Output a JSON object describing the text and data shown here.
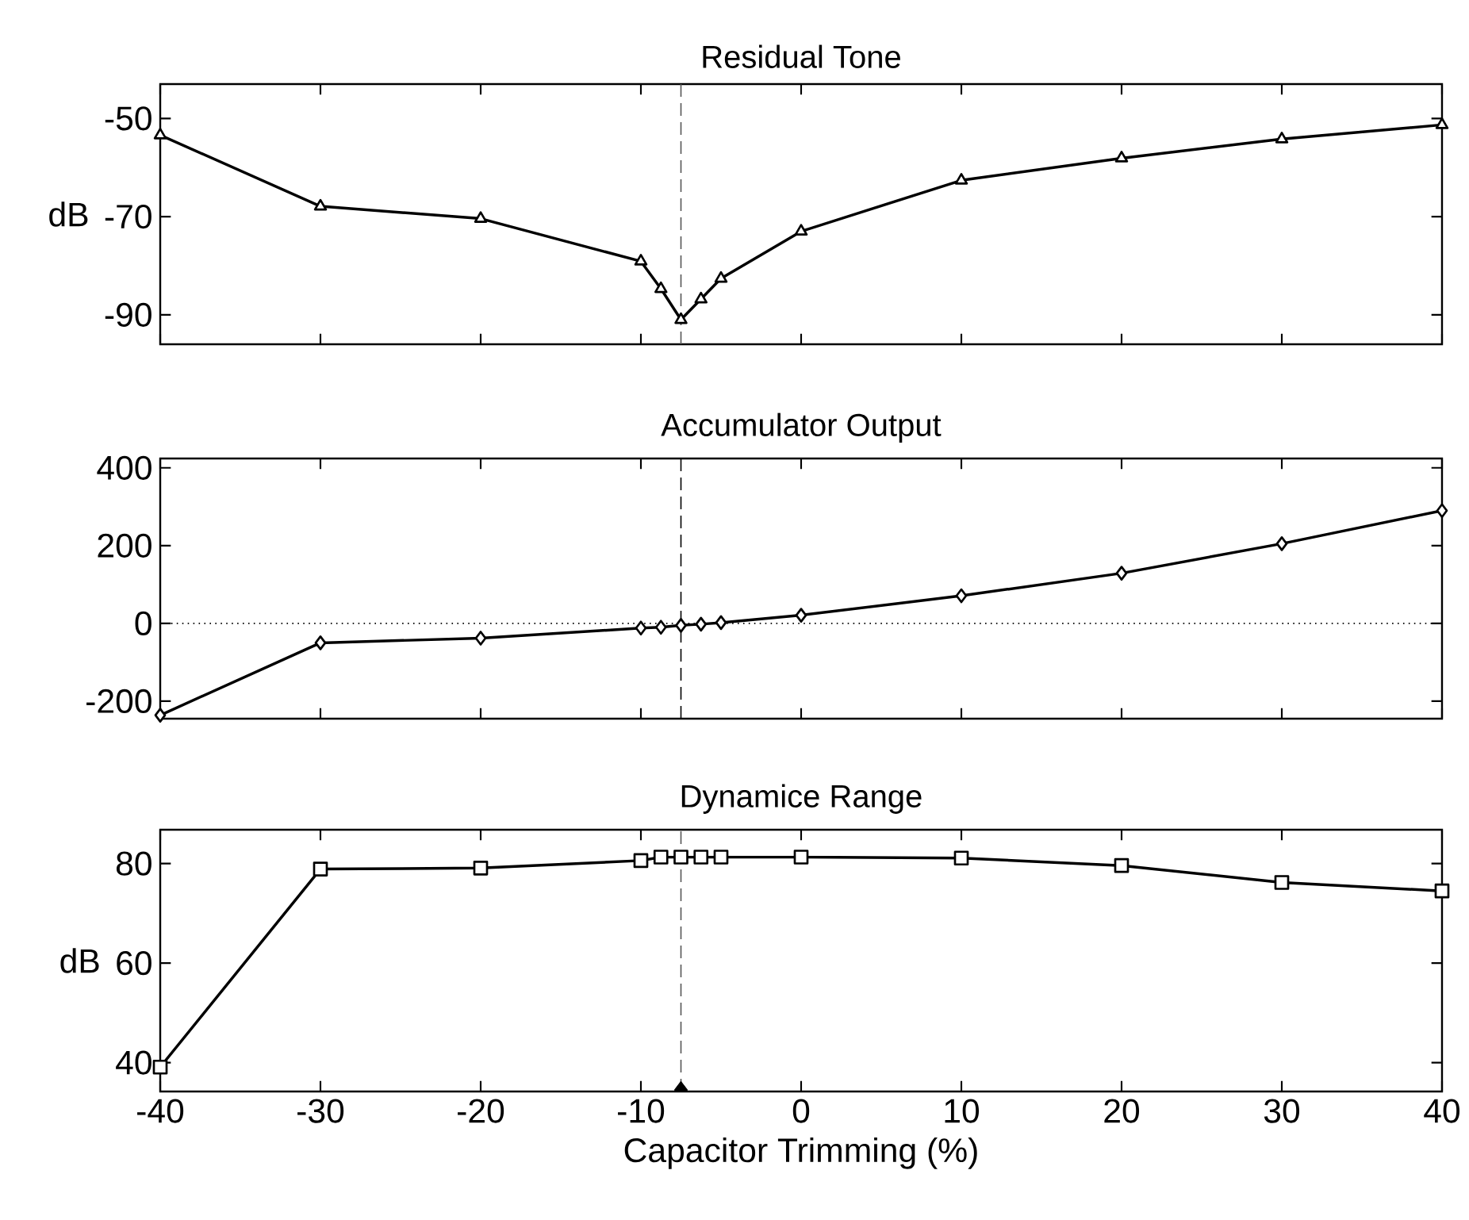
{
  "chart_data": [
    {
      "type": "line",
      "title": "Residual Tone",
      "ylabel": "dB",
      "x": [
        -40,
        -30,
        -20,
        -10,
        -8.75,
        -7.5,
        -6.25,
        -5,
        0,
        10,
        20,
        30,
        40
      ],
      "series": [
        {
          "color": "#000000",
          "values": [
            -53.4,
            -67.9,
            -70.4,
            -79.1,
            -84.7,
            -91,
            -86.8,
            -82.6,
            -73,
            -62.6,
            -58.1,
            -54.2,
            -51.3
          ]
        }
      ],
      "marker": "triangle",
      "xlim": [
        -40,
        40
      ],
      "xticks": [
        -40,
        -30,
        -20,
        -10,
        0,
        10,
        20,
        30,
        40
      ],
      "ylim": [
        -96,
        -43
      ],
      "yticks": [
        -90,
        -70,
        -50
      ],
      "tick_labels": "y",
      "grid": false,
      "ref_lines": [
        {
          "axis": "x",
          "value": -7.5,
          "color": "#555555",
          "line_style": "dashed"
        }
      ]
    },
    {
      "type": "line",
      "title": "Accumulator Output",
      "x": [
        -40,
        -30,
        -20,
        -10,
        -8.75,
        -7.5,
        -6.25,
        -5,
        0,
        10,
        20,
        30,
        40
      ],
      "series": [
        {
          "color": "#000000",
          "values": [
            -236,
            -50,
            -38,
            -12,
            -10,
            -5,
            -2,
            2,
            21,
            71,
            129,
            205,
            290
          ]
        }
      ],
      "marker": "diamond",
      "xlim": [
        -40,
        40
      ],
      "xticks": [
        -40,
        -30,
        -20,
        -10,
        0,
        10,
        20,
        30,
        40
      ],
      "ylim": [
        -245,
        424
      ],
      "yticks": [
        -200,
        0,
        200,
        400
      ],
      "tick_labels": "y",
      "grid": false,
      "ref_lines": [
        {
          "axis": "x",
          "value": -7.5,
          "color": "#000000",
          "line_style": "dashed"
        },
        {
          "axis": "y",
          "value": 0,
          "color": "#000000",
          "line_style": "dotted"
        }
      ]
    },
    {
      "type": "line",
      "title": "Dynamice Range",
      "xlabel": "Capacitor Trimming (%)",
      "ylabel": "dB",
      "x": [
        -40,
        -30,
        -20,
        -10,
        -8.75,
        -7.5,
        -6.25,
        -5,
        0,
        10,
        20,
        30,
        40
      ],
      "series": [
        {
          "color": "#000000",
          "values": [
            39.1,
            78.9,
            79.1,
            80.6,
            81.3,
            81.3,
            81.3,
            81.3,
            81.3,
            81.1,
            79.6,
            76.2,
            74.5
          ]
        },
        {
          "type": "scatter",
          "marker": "diamond",
          "color": "#000000",
          "x": [
            -7.5
          ],
          "values": [
            34.5
          ]
        }
      ],
      "marker": "square",
      "xlim": [
        -40,
        40
      ],
      "xticks": [
        -40,
        -30,
        -20,
        -10,
        0,
        10,
        20,
        30,
        40
      ],
      "ylim": [
        34.2,
        86.8
      ],
      "yticks": [
        40,
        60,
        80
      ],
      "grid": false,
      "ref_lines": [
        {
          "axis": "x",
          "value": -7.5,
          "color": "#555555",
          "line_style": "dashed"
        }
      ]
    }
  ]
}
